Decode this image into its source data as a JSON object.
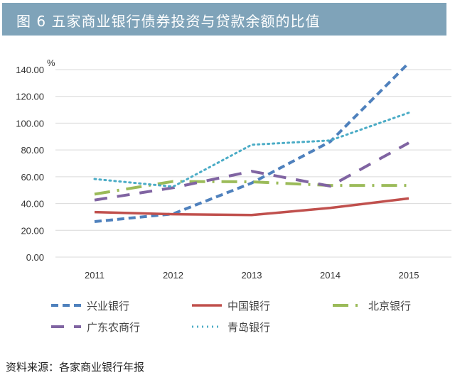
{
  "title": "图 6  五家商业银行债券投资与贷款余额的比值",
  "source": "资料来源：各家商业银行年报",
  "chart_data": {
    "type": "line",
    "title": "图 6  五家商业银行债券投资与贷款余额的比值",
    "ylabel": "%",
    "xlabel": "",
    "categories": [
      "2011",
      "2012",
      "2013",
      "2014",
      "2015"
    ],
    "ylim": [
      0,
      140
    ],
    "yticks": [
      "0.00",
      "20.00",
      "40.00",
      "60.00",
      "80.00",
      "100.00",
      "120.00",
      "140.00"
    ],
    "grid": true,
    "legend": "bottom",
    "series": [
      {
        "name": "兴业银行",
        "color": "#4f81bd",
        "dash": "dash",
        "values": [
          26.5,
          32.3,
          55.3,
          86.2,
          145.0
        ]
      },
      {
        "name": "中国银行",
        "color": "#c0504d",
        "dash": "solid",
        "values": [
          33.6,
          32.0,
          31.4,
          36.7,
          43.8
        ]
      },
      {
        "name": "北京银行",
        "color": "#9bbb59",
        "dash": "dash-dot",
        "values": [
          47.0,
          56.5,
          56.2,
          53.5,
          53.5
        ]
      },
      {
        "name": "广东农商行",
        "color": "#8064a2",
        "dash": "long-dash",
        "values": [
          42.6,
          51.8,
          64.1,
          53.0,
          85.3
        ]
      },
      {
        "name": "青岛银行",
        "color": "#4bacc6",
        "dash": "dot",
        "values": [
          58.3,
          52.6,
          83.9,
          87.1,
          107.8
        ]
      }
    ]
  }
}
